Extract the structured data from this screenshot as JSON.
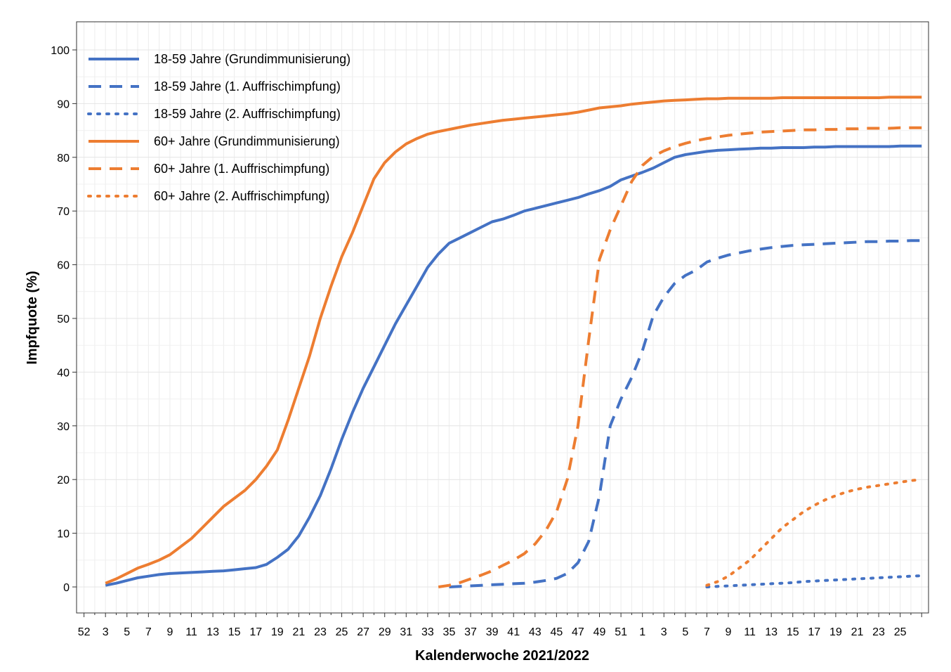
{
  "chart_data": {
    "type": "line",
    "title": "",
    "xlabel": "Kalenderwoche 2021/2022",
    "ylabel": "Impfquote (%)",
    "ylim": [
      -5,
      105
    ],
    "y_ticks": [
      0,
      10,
      20,
      30,
      40,
      50,
      60,
      70,
      80,
      90,
      100
    ],
    "x_tick_labels": [
      "52",
      "3",
      "5",
      "7",
      "9",
      "11",
      "13",
      "15",
      "17",
      "19",
      "21",
      "23",
      "25",
      "27",
      "29",
      "31",
      "33",
      "35",
      "37",
      "39",
      "41",
      "43",
      "45",
      "47",
      "49",
      "51",
      "1",
      "3",
      "5",
      "7",
      "9",
      "11",
      "13",
      "15",
      "17",
      "19",
      "21",
      "23",
      "25"
    ],
    "x_axis_note": "x values are consecutive calendar weeks indexed from week 52 of 2020 (0) through week 26 of 2022 (78)",
    "grid": true,
    "legend_position": "top-left",
    "series": [
      {
        "name": "18-59 Jahre (Grundimmunisierung)",
        "color": "#4472C4",
        "dash": "solid",
        "x": [
          2,
          3,
          4,
          5,
          6,
          7,
          8,
          9,
          10,
          11,
          12,
          13,
          14,
          15,
          16,
          17,
          18,
          19,
          20,
          21,
          22,
          23,
          24,
          25,
          26,
          27,
          28,
          29,
          30,
          31,
          32,
          33,
          34,
          35,
          36,
          37,
          38,
          39,
          40,
          41,
          42,
          43,
          44,
          45,
          46,
          47,
          48,
          49,
          50,
          51,
          52,
          53,
          54,
          55,
          56,
          57,
          58,
          59,
          60,
          61,
          62,
          63,
          64,
          65,
          66,
          67,
          68,
          69,
          70,
          71,
          72,
          73,
          74,
          75,
          76,
          77,
          78
        ],
        "y": [
          0.3,
          0.7,
          1.2,
          1.7,
          2.0,
          2.3,
          2.5,
          2.6,
          2.7,
          2.8,
          2.9,
          3.0,
          3.2,
          3.4,
          3.6,
          4.2,
          5.5,
          7.0,
          9.5,
          13.0,
          17.0,
          22.0,
          27.5,
          32.5,
          37.0,
          41.0,
          45.0,
          49.0,
          52.5,
          56.0,
          59.5,
          62.0,
          64.0,
          65.0,
          66.0,
          67.0,
          68.0,
          68.5,
          69.2,
          70.0,
          70.5,
          71.0,
          71.5,
          72.0,
          72.5,
          73.2,
          73.8,
          74.6,
          75.8,
          76.5,
          77.2,
          78.0,
          79.0,
          80.0,
          80.5,
          80.8,
          81.1,
          81.3,
          81.4,
          81.5,
          81.6,
          81.7,
          81.7,
          81.8,
          81.8,
          81.8,
          81.9,
          81.9,
          82.0,
          82.0,
          82.0,
          82.0,
          82.0,
          82.0,
          82.1,
          82.1,
          82.1
        ]
      },
      {
        "name": "18-59 Jahre (1. Auffrischimpfung)",
        "color": "#4472C4",
        "dash": "dashed",
        "x": [
          34,
          35,
          36,
          37,
          38,
          39,
          40,
          41,
          42,
          43,
          44,
          45,
          46,
          47,
          48,
          49,
          50,
          51,
          52,
          53,
          54,
          55,
          56,
          57,
          58,
          59,
          60,
          61,
          62,
          63,
          64,
          65,
          66,
          67,
          68,
          69,
          70,
          71,
          72,
          73,
          74,
          75,
          76,
          77,
          78
        ],
        "y": [
          0.0,
          0.1,
          0.2,
          0.3,
          0.4,
          0.5,
          0.6,
          0.7,
          0.9,
          1.2,
          1.6,
          2.5,
          4.5,
          8.5,
          17.0,
          30.0,
          35.0,
          39.0,
          44.0,
          50.5,
          54.0,
          56.5,
          58.0,
          59.0,
          60.5,
          61.2,
          61.8,
          62.2,
          62.6,
          62.9,
          63.2,
          63.4,
          63.6,
          63.7,
          63.8,
          63.9,
          64.0,
          64.1,
          64.2,
          64.3,
          64.3,
          64.4,
          64.4,
          64.5,
          64.5
        ]
      },
      {
        "name": "18-59 Jahre (2. Auffrischimpfung)",
        "color": "#4472C4",
        "dash": "dotted",
        "x": [
          58,
          59,
          60,
          61,
          62,
          63,
          64,
          65,
          66,
          67,
          68,
          69,
          70,
          71,
          72,
          73,
          74,
          75,
          76,
          77,
          78
        ],
        "y": [
          0.0,
          0.1,
          0.2,
          0.3,
          0.4,
          0.5,
          0.6,
          0.7,
          0.8,
          1.0,
          1.1,
          1.2,
          1.3,
          1.4,
          1.5,
          1.6,
          1.7,
          1.8,
          1.9,
          2.0,
          2.1
        ]
      },
      {
        "name": "60+ Jahre (Grundimmunisierung)",
        "color": "#ED7D31",
        "dash": "solid",
        "x": [
          2,
          3,
          4,
          5,
          6,
          7,
          8,
          9,
          10,
          11,
          12,
          13,
          14,
          15,
          16,
          17,
          18,
          19,
          20,
          21,
          22,
          23,
          24,
          25,
          26,
          27,
          28,
          29,
          30,
          31,
          32,
          33,
          34,
          35,
          36,
          37,
          38,
          39,
          40,
          41,
          42,
          43,
          44,
          45,
          46,
          47,
          48,
          49,
          50,
          51,
          52,
          53,
          54,
          55,
          56,
          57,
          58,
          59,
          60,
          61,
          62,
          63,
          64,
          65,
          66,
          67,
          68,
          69,
          70,
          71,
          72,
          73,
          74,
          75,
          76,
          77,
          78
        ],
        "y": [
          0.7,
          1.5,
          2.5,
          3.5,
          4.2,
          5.0,
          6.0,
          7.5,
          9.0,
          11.0,
          13.0,
          15.0,
          16.5,
          18.0,
          20.0,
          22.5,
          25.5,
          31.0,
          37.0,
          43.0,
          50.0,
          56.0,
          61.5,
          66.0,
          71.0,
          76.0,
          79.0,
          81.0,
          82.5,
          83.5,
          84.3,
          84.8,
          85.2,
          85.6,
          86.0,
          86.3,
          86.6,
          86.9,
          87.1,
          87.3,
          87.5,
          87.7,
          87.9,
          88.1,
          88.4,
          88.8,
          89.2,
          89.4,
          89.6,
          89.9,
          90.1,
          90.3,
          90.5,
          90.6,
          90.7,
          90.8,
          90.9,
          90.9,
          91.0,
          91.0,
          91.0,
          91.0,
          91.0,
          91.1,
          91.1,
          91.1,
          91.1,
          91.1,
          91.1,
          91.1,
          91.1,
          91.1,
          91.1,
          91.2,
          91.2,
          91.2,
          91.2
        ]
      },
      {
        "name": "60+ Jahre (1. Auffrischimpfung)",
        "color": "#ED7D31",
        "dash": "dashed",
        "x": [
          33,
          34,
          35,
          36,
          37,
          38,
          39,
          40,
          41,
          42,
          43,
          44,
          45,
          46,
          47,
          48,
          49,
          50,
          51,
          52,
          53,
          54,
          55,
          56,
          57,
          58,
          59,
          60,
          61,
          62,
          63,
          64,
          65,
          66,
          67,
          68,
          69,
          70,
          71,
          72,
          73,
          74,
          75,
          76,
          77,
          78
        ],
        "y": [
          0.0,
          0.3,
          0.8,
          1.5,
          2.2,
          3.0,
          4.0,
          5.0,
          6.2,
          8.0,
          10.5,
          14.0,
          20.0,
          30.0,
          46.0,
          61.0,
          66.5,
          71.0,
          75.5,
          78.5,
          80.2,
          81.2,
          82.0,
          82.6,
          83.1,
          83.5,
          83.8,
          84.1,
          84.3,
          84.5,
          84.7,
          84.8,
          84.9,
          85.0,
          85.1,
          85.1,
          85.2,
          85.2,
          85.3,
          85.3,
          85.4,
          85.4,
          85.4,
          85.5,
          85.5,
          85.5
        ]
      },
      {
        "name": "60+ Jahre (2. Auffrischimpfung)",
        "color": "#ED7D31",
        "dash": "dotted",
        "x": [
          58,
          59,
          60,
          61,
          62,
          63,
          64,
          65,
          66,
          67,
          68,
          69,
          70,
          71,
          72,
          73,
          74,
          75,
          76,
          77,
          78
        ],
        "y": [
          0.3,
          1.0,
          2.0,
          3.5,
          5.0,
          7.0,
          9.0,
          11.0,
          12.5,
          14.0,
          15.2,
          16.2,
          17.0,
          17.7,
          18.2,
          18.6,
          18.9,
          19.2,
          19.5,
          19.8,
          20.0
        ]
      }
    ]
  }
}
